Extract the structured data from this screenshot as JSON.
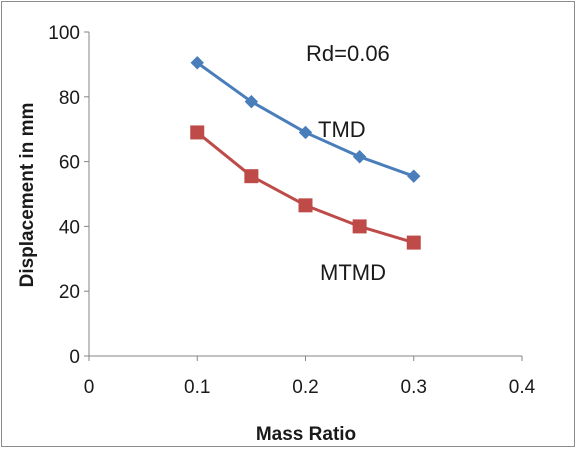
{
  "chart_data": {
    "type": "line",
    "title": "",
    "xlabel": "Mass Ratio",
    "ylabel": "Displacement in mm",
    "xlim": [
      0,
      0.4
    ],
    "ylim": [
      0,
      100
    ],
    "xticks": [
      0,
      0.1,
      0.2,
      0.3,
      0.4
    ],
    "xtick_labels": [
      "0",
      "0.1",
      "0.2",
      "0.3",
      "0.4"
    ],
    "yticks": [
      0,
      20,
      40,
      60,
      80,
      100
    ],
    "ytick_labels": [
      "0",
      "20",
      "40",
      "60",
      "80",
      "100"
    ],
    "grid": false,
    "legend": "none",
    "annotations": [
      "Rd=0.06"
    ],
    "series": [
      {
        "name": "TMD",
        "color": "#4a7ebb",
        "marker": "diamond",
        "x": [
          0.1,
          0.15,
          0.2,
          0.25,
          0.3
        ],
        "y": [
          90.5,
          78.5,
          69,
          61.5,
          55.5
        ]
      },
      {
        "name": "MTMD",
        "color": "#be4b48",
        "marker": "square",
        "x": [
          0.1,
          0.15,
          0.2,
          0.25,
          0.3
        ],
        "y": [
          69,
          55.5,
          46.5,
          40,
          35
        ]
      }
    ]
  }
}
